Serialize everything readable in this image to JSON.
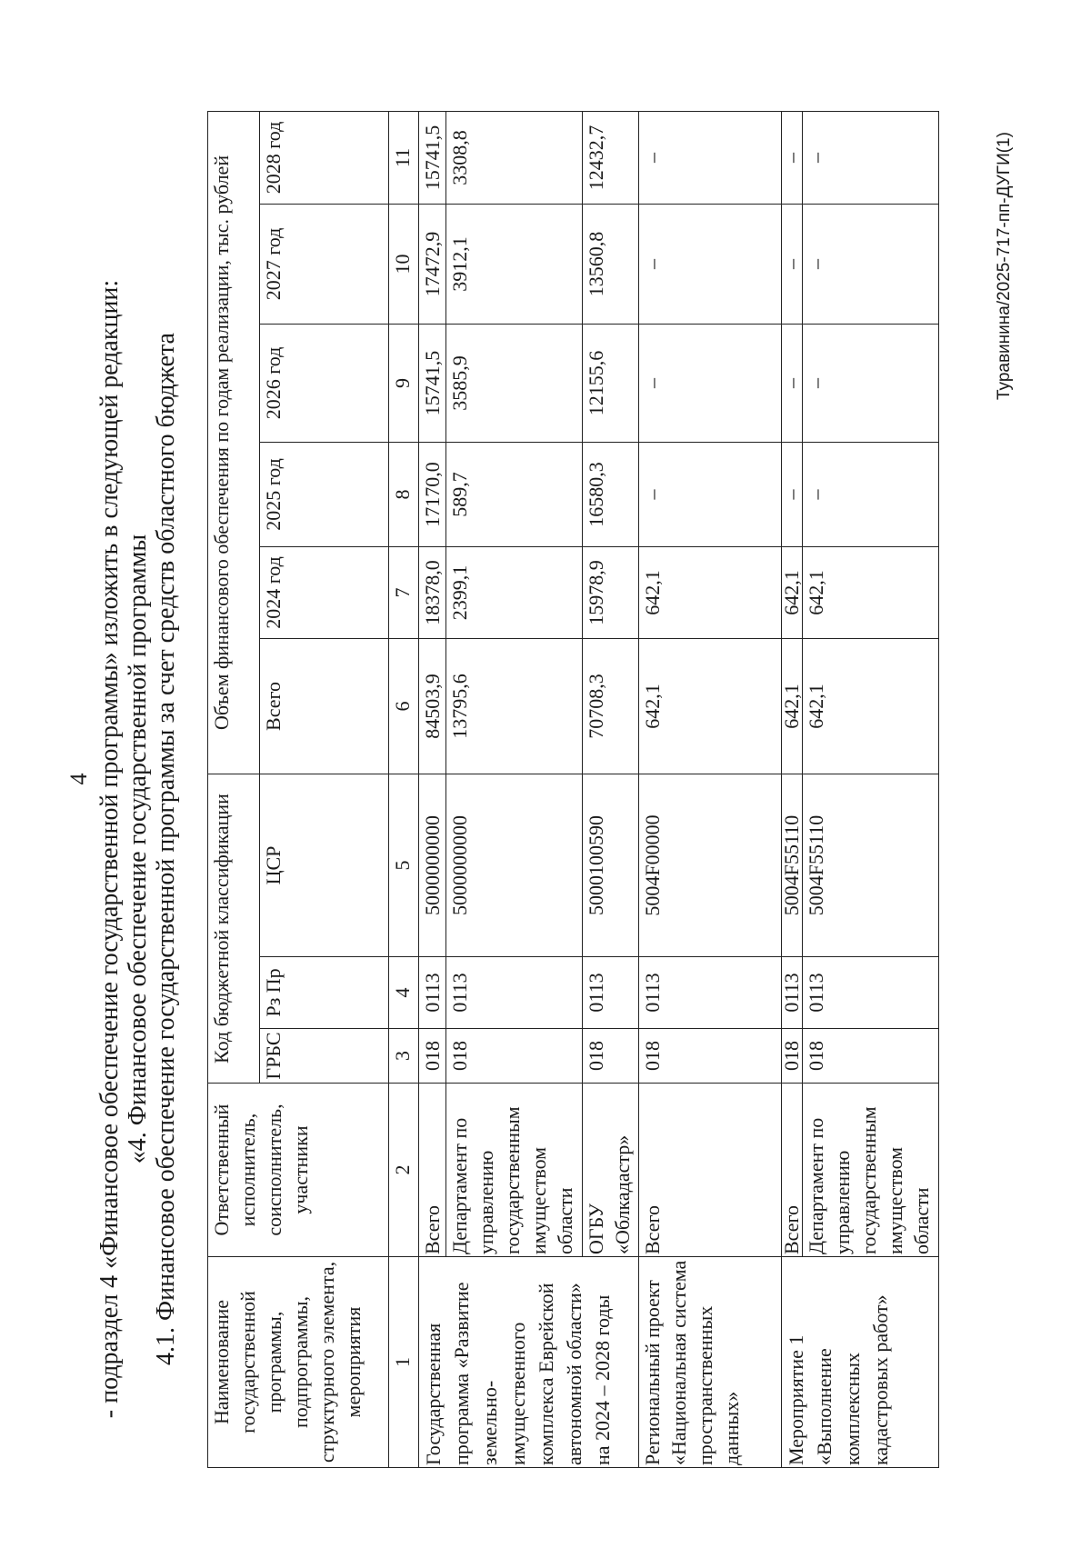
{
  "page_number": "4",
  "heading": {
    "line1": "- подраздел 4 «Финансовое обеспечение государственной программы» изложить в следующей редакции:",
    "line2": "«4. Финансовое обеспечение государственной программы",
    "line3": "4.1. Финансовое обеспечение государственной программы за счет средств областного бюджета"
  },
  "table": {
    "headers": {
      "name": "Наименование государственной программы, подпрограммы, структурного элемента, мероприятия",
      "executor": "Ответственный исполнитель, соисполнитель, участники",
      "budget_code": "Код бюджетной классификации",
      "grbs": "ГРБС",
      "rzpr": "Рз Пр",
      "csr": "ЦСР",
      "funding": "Объем финансового обеспечения по годам реализации, тыс. рублей",
      "total": "Всего",
      "years": [
        "2024 год",
        "2025 год",
        "2026 год",
        "2027 год",
        "2028 год"
      ]
    },
    "column_numbers": [
      "1",
      "2",
      "3",
      "4",
      "5",
      "6",
      "7",
      "8",
      "9",
      "10",
      "11"
    ],
    "groups": [
      {
        "name": "Государственная программа «Развитие земельно-имущественного комплекса Еврейской автономной области» на 2024 – 2028 годы",
        "rows": [
          {
            "executor": "Всего",
            "grbs": "018",
            "rzpr": "0113",
            "csr": "5000000000",
            "values": [
              "84503,9",
              "18378,0",
              "17170,0",
              "15741,5",
              "17472,9",
              "15741,5"
            ]
          },
          {
            "executor": "Департамент по управлению государственным имуществом области",
            "grbs": "018",
            "rzpr": "0113",
            "csr": "5000000000",
            "values": [
              "13795,6",
              "2399,1",
              "589,7",
              "3585,9",
              "3912,1",
              "3308,8"
            ]
          },
          {
            "executor": "ОГБУ «Облкадастр»",
            "grbs": "018",
            "rzpr": "0113",
            "csr": "5000100590",
            "values": [
              "70708,3",
              "15978,9",
              "16580,3",
              "12155,6",
              "13560,8",
              "12432,7"
            ]
          }
        ]
      },
      {
        "name": "Региональный проект «Национальная система пространственных данных»",
        "rows": [
          {
            "executor": "Всего",
            "grbs": "018",
            "rzpr": "0113",
            "csr": "5004F00000",
            "values": [
              "642,1",
              "642,1",
              "–",
              "–",
              "–",
              "–"
            ]
          }
        ]
      },
      {
        "name": "Мероприятие 1 «Выполнение комплексных кадастровых работ»",
        "rows": [
          {
            "executor": "Всего",
            "grbs": "018",
            "rzpr": "0113",
            "csr": "5004F55110",
            "values": [
              "642,1",
              "642,1",
              "–",
              "–",
              "–",
              "–"
            ]
          },
          {
            "executor": "Департамент по управлению государственным имуществом области",
            "grbs": "018",
            "rzpr": "0113",
            "csr": "5004F55110",
            "values": [
              "642,1",
              "642,1",
              "–",
              "–",
              "–",
              "–"
            ]
          }
        ]
      }
    ]
  },
  "footer": "Туравинина/2025-717-пп-ДУГИ(1)"
}
